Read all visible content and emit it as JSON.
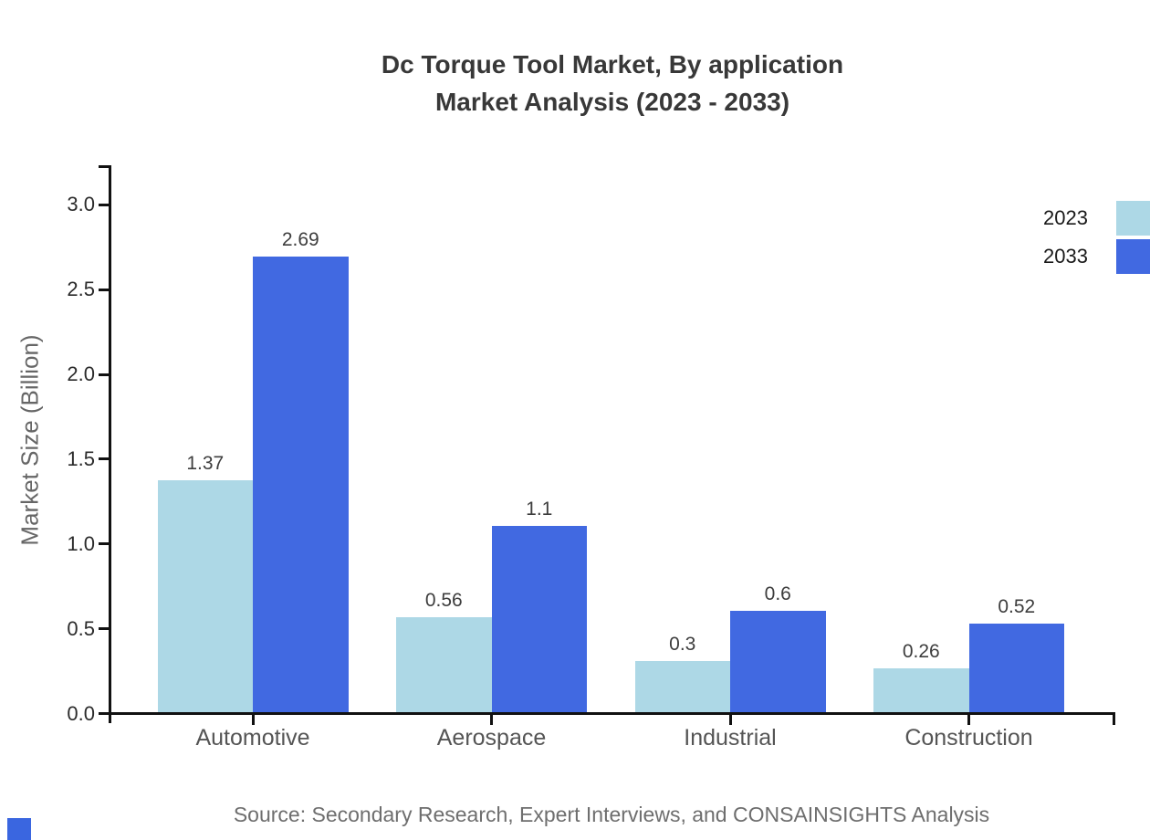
{
  "title": {
    "line1": "Dc Torque Tool Market, By application",
    "line2": "Market Analysis (2023 - 2033)"
  },
  "source": {
    "text": "Source: Secondary Research, Expert Interviews, and CONSAINSIGHTS Analysis"
  },
  "branding": {
    "mark_color": "#3A66E0"
  },
  "colors": {
    "axis": "#111111",
    "series_2023": "#ADD8E6",
    "series_2033": "#4169E1"
  },
  "chart_data": {
    "type": "bar",
    "title": "Dc Torque Tool Market, By application Market Analysis (2023 - 2033)",
    "categories": [
      "Automotive",
      "Aerospace",
      "Industrial",
      "Construction"
    ],
    "series": [
      {
        "name": "2023",
        "color": "#ADD8E6",
        "values": [
          1.37,
          0.56,
          0.3,
          0.26
        ],
        "labels": [
          "1.37",
          "0.56",
          "0.3",
          "0.26"
        ]
      },
      {
        "name": "2033",
        "color": "#4169E1",
        "values": [
          2.69,
          1.1,
          0.6,
          0.52
        ],
        "labels": [
          "2.69",
          "1.1",
          "0.6",
          "0.52"
        ]
      }
    ],
    "xlabel": "",
    "ylabel": "Market Size (Billion)",
    "ylim": [
      0,
      3.25
    ],
    "yticks": [
      "0.0",
      "0.5",
      "1.0",
      "1.5",
      "2.0",
      "2.5",
      "3.0"
    ],
    "grid": false,
    "legend_position": "top-right"
  }
}
